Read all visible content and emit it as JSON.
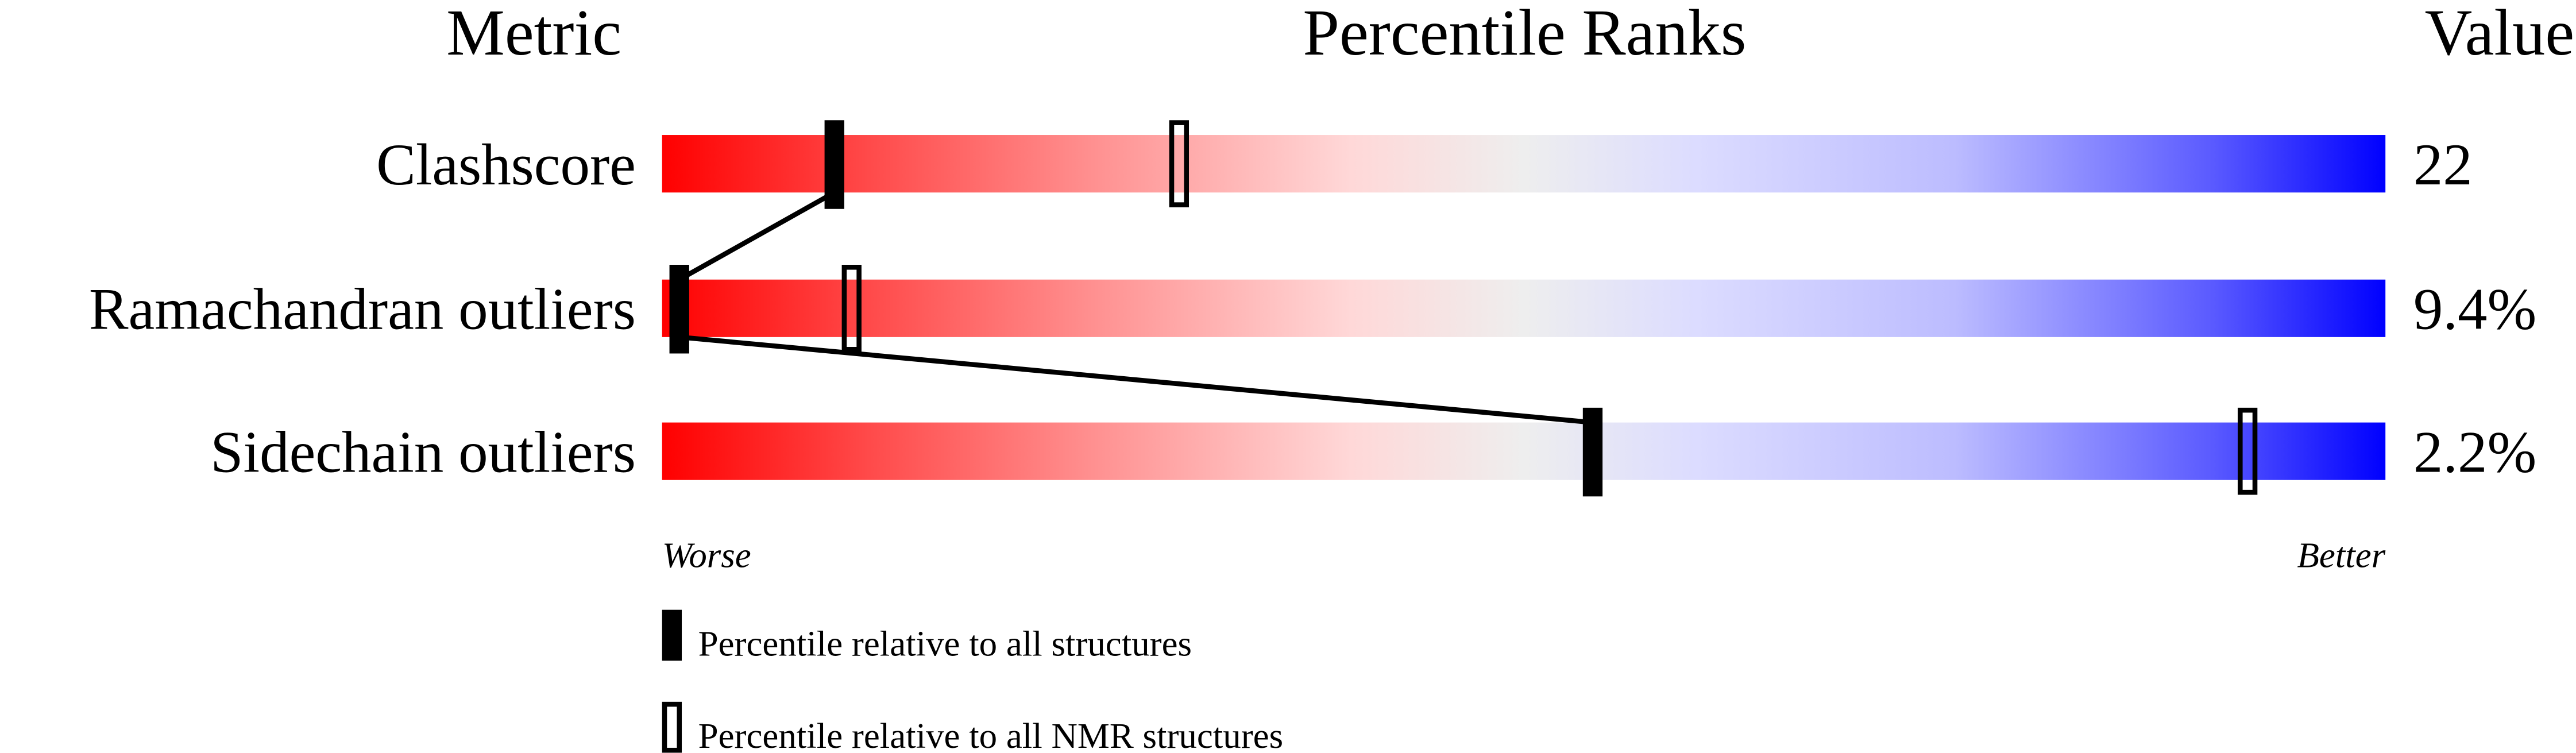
{
  "chart_data": {
    "type": "percentile-ranks",
    "headers": {
      "metric": "Metric",
      "ranks": "Percentile Ranks",
      "value": "Value"
    },
    "xlim": [
      0,
      100
    ],
    "axis_labels": {
      "left": "Worse",
      "right": "Better"
    },
    "gradient_colors": [
      "#ff0000",
      "#eeeeee",
      "#0000ff"
    ],
    "metrics": [
      {
        "name": "Clashscore",
        "value": "22",
        "percentile_all": 10,
        "percentile_nmr": 30
      },
      {
        "name": "Ramachandran outliers",
        "value": "9.4%",
        "percentile_all": 1,
        "percentile_nmr": 11
      },
      {
        "name": "Sidechain outliers",
        "value": "2.2%",
        "percentile_all": 54,
        "percentile_nmr": 92
      }
    ],
    "legend": [
      {
        "marker": "filled",
        "label": "Percentile relative to all structures"
      },
      {
        "marker": "open",
        "label": "Percentile relative to all NMR structures"
      }
    ]
  }
}
